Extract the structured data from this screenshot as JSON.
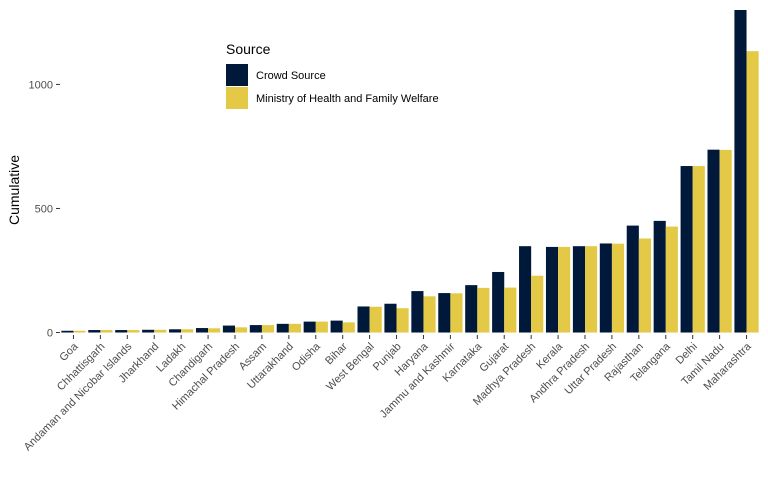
{
  "chart_data": {
    "type": "bar",
    "ylabel": "Cumulative",
    "xlabel": "",
    "legend_title": "Source",
    "legend_position": "top-left",
    "grid": false,
    "ylim": [
      -10,
      1300
    ],
    "yticks": [
      0,
      500,
      1000
    ],
    "categories": [
      "Goa",
      "Chhattisgarh",
      "Andaman and Nicobar Islands",
      "Jharkhand",
      "Ladakh",
      "Chandigarh",
      "Himachal Pradesh",
      "Assam",
      "Uttarakhand",
      "Odisha",
      "Bihar",
      "West Bengal",
      "Punjab",
      "Haryana",
      "Jammu and Kashmir",
      "Karnataka",
      "Gujarat",
      "Madhya Pradesh",
      "Kerala",
      "Andhra Pradesh",
      "Uttar Pradesh",
      "Rajasthan",
      "Telangana",
      "Delhi",
      "Tamil Nadu",
      "Maharashtra"
    ],
    "series": [
      {
        "name": "Crowd Source",
        "color": "#00183a",
        "values": [
          7,
          10,
          10,
          11,
          13,
          18,
          28,
          30,
          35,
          44,
          48,
          105,
          116,
          167,
          159,
          191,
          244,
          348,
          345,
          348,
          359,
          431,
          450,
          671,
          737,
          1300
        ]
      },
      {
        "name": "Ministry of Health and Family Welfare",
        "color": "#e3c946",
        "values": [
          7,
          10,
          10,
          11,
          13,
          17,
          21,
          30,
          35,
          44,
          41,
          104,
          98,
          146,
          158,
          180,
          181,
          229,
          345,
          348,
          358,
          379,
          427,
          671,
          736,
          1134
        ]
      }
    ]
  }
}
